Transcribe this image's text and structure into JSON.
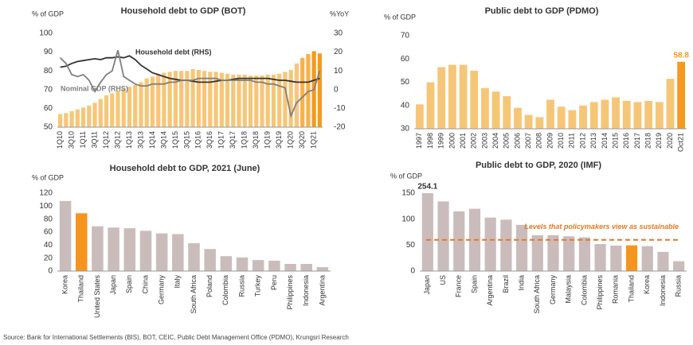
{
  "chart_data": [
    {
      "type": "bar",
      "title": "Household debt to GDP (BOT)",
      "ylabel": "% of GDP",
      "y2label": "%YoY",
      "categories": [
        "1Q10",
        null,
        "3Q10",
        null,
        "1Q11",
        null,
        "3Q11",
        null,
        "1Q12",
        null,
        "3Q12",
        null,
        "1Q13",
        null,
        "3Q13",
        null,
        "1Q14",
        null,
        "3Q14",
        null,
        "1Q15",
        null,
        "3Q15",
        null,
        "1Q16",
        null,
        "3Q16",
        null,
        "1Q17",
        null,
        "3Q17",
        null,
        "1Q18",
        null,
        "3Q18",
        null,
        "1Q19",
        null,
        "3Q19",
        null,
        "1Q20",
        null,
        "3Q20",
        null,
        "1Q21",
        null
      ],
      "values": [
        57,
        57.5,
        58.5,
        59.5,
        60.5,
        61.5,
        63,
        65,
        67,
        68,
        69.5,
        70.5,
        71.5,
        72.5,
        74,
        76,
        77,
        78,
        79,
        79.5,
        80,
        80,
        80,
        81,
        80.5,
        80,
        79.5,
        79.5,
        79,
        78.5,
        78,
        78,
        78,
        77.5,
        77.5,
        77.5,
        78,
        78,
        78.5,
        79.5,
        80.5,
        84,
        87,
        89,
        90.5,
        89.3
      ],
      "colors": [
        "#f6c678",
        "#f6c678",
        "#f6c678",
        "#f6c678",
        "#f6c678",
        "#f6c678",
        "#f6c678",
        "#f6c678",
        "#f6c678",
        "#f6c678",
        "#f6c678",
        "#f6c678",
        "#f6c678",
        "#f6c678",
        "#f6c678",
        "#f6c678",
        "#f6c678",
        "#f6c678",
        "#f6c678",
        "#f6c678",
        "#f6c678",
        "#f6c678",
        "#f6c678",
        "#f6c678",
        "#f6c678",
        "#f6c678",
        "#f6c678",
        "#f6c678",
        "#f6c678",
        "#f6c678",
        "#f6c678",
        "#f6c678",
        "#f6c678",
        "#f6c678",
        "#f6c678",
        "#f6c678",
        "#f6c678",
        "#f6c678",
        "#f6c678",
        "#f6c678",
        "#f6c678",
        "#f6c678",
        "#f6b24a",
        "#f6b24a",
        "#f39a1f",
        "#f39a1f"
      ],
      "ylim": [
        50,
        100
      ],
      "yticks": [
        50,
        60,
        70,
        80,
        90,
        100
      ],
      "y2lim": [
        -20,
        30
      ],
      "y2ticks": [
        -20,
        -10,
        0,
        10,
        20,
        30
      ],
      "lines": [
        {
          "name": "Household debt (RHS)",
          "color": "#333333",
          "axis": "y2",
          "values": [
            12,
            12.5,
            14,
            15,
            15.5,
            16,
            16.5,
            16,
            17,
            17,
            17.5,
            17,
            18,
            16,
            13,
            11,
            9,
            8,
            7,
            6,
            5.5,
            5,
            5,
            4.5,
            4,
            4,
            4,
            4.5,
            5,
            5,
            5.5,
            6,
            6,
            6,
            6,
            6,
            6,
            5.5,
            5,
            5,
            4.5,
            4,
            4,
            4,
            5,
            6
          ]
        },
        {
          "name": "Nominal GDP (RHS)",
          "color": "#7f7f7f",
          "axis": "y2",
          "values": [
            17,
            14,
            8,
            7,
            8,
            5,
            -1,
            4,
            8,
            10,
            21,
            7,
            5,
            3,
            2,
            2,
            3,
            3,
            3,
            4,
            4,
            5,
            5,
            5,
            6,
            6,
            6,
            6,
            5,
            5,
            5,
            5,
            5,
            5,
            4,
            4,
            3,
            3,
            2,
            1,
            -14,
            -7,
            -4,
            -1,
            0,
            10
          ]
        }
      ]
    },
    {
      "type": "bar",
      "title": "Public debt to GDP (PDMO)",
      "ylabel": "% of GDP",
      "categories": [
        "1997",
        "1998",
        "1999",
        "2000",
        "2001",
        "2002",
        "2003",
        "2004",
        "2005",
        "2006",
        "2007",
        "2008",
        "2009",
        "2010",
        "2011",
        "2012",
        "2013",
        "2014",
        "2015",
        "2016",
        "2017",
        "2018",
        "2019",
        "2020",
        "Oct21"
      ],
      "values": [
        40.5,
        50,
        56.5,
        57.5,
        57.5,
        55,
        47.5,
        46,
        44,
        39,
        36,
        35,
        42.5,
        39.5,
        38,
        40,
        41.5,
        42.5,
        43.5,
        42,
        41.5,
        42,
        41.5,
        51.5,
        58.8
      ],
      "value_labels": [
        null,
        null,
        null,
        null,
        null,
        null,
        null,
        null,
        null,
        null,
        null,
        null,
        null,
        null,
        null,
        null,
        null,
        null,
        null,
        null,
        null,
        null,
        null,
        null,
        "58.8"
      ],
      "colors": [
        "#f6c678",
        "#f6c678",
        "#f6c678",
        "#f6c678",
        "#f6c678",
        "#f6c678",
        "#f6c678",
        "#f6c678",
        "#f6c678",
        "#f6c678",
        "#f6c678",
        "#f6c678",
        "#f6c678",
        "#f6c678",
        "#f6c678",
        "#f6c678",
        "#f6c678",
        "#f6c678",
        "#f6c678",
        "#f6c678",
        "#f6c678",
        "#f6c678",
        "#f6c678",
        "#f6c678",
        "#f39a1f"
      ],
      "ylim": [
        30,
        70
      ],
      "yticks": [
        30,
        40,
        50,
        60,
        70
      ]
    },
    {
      "type": "bar",
      "title": "Household debt to GDP, 2021 (June)",
      "ylabel": "% of GDP",
      "categories": [
        "Korea",
        "Thailand",
        "United States",
        "Japan",
        "Spain",
        "China",
        "Germany",
        "Italy",
        "South Africa",
        "Poland",
        "Colombia",
        "Russia",
        "Turkey",
        "Peru",
        "Philippines",
        "Indonesia",
        "Argentina"
      ],
      "values": [
        108,
        89,
        69,
        67,
        66,
        62,
        58,
        57,
        43,
        34,
        23,
        21,
        17,
        16,
        11,
        11,
        6
      ],
      "colors": [
        "#cbbcbc",
        "#f7941d",
        "#cbbcbc",
        "#cbbcbc",
        "#cbbcbc",
        "#cbbcbc",
        "#cbbcbc",
        "#cbbcbc",
        "#cbbcbc",
        "#cbbcbc",
        "#cbbcbc",
        "#cbbcbc",
        "#cbbcbc",
        "#cbbcbc",
        "#cbbcbc",
        "#cbbcbc",
        "#cbbcbc"
      ],
      "ylim": [
        0,
        120
      ],
      "yticks": [
        0,
        20,
        40,
        60,
        80,
        100,
        120
      ]
    },
    {
      "type": "bar",
      "title": "Public debt to GDP, 2020 (IMF)",
      "ylabel": "% of GDP",
      "categories": [
        "Japan",
        "US",
        "France",
        "Spain",
        "Argentina",
        "Brazil",
        "India",
        "South Africa",
        "Germany",
        "Malaysia",
        "Colombia",
        "Philippines",
        "Romania",
        "Thailand",
        "Korea",
        "Indonesia",
        "Russia"
      ],
      "values": [
        254.1,
        134,
        115,
        120,
        103,
        99,
        89,
        69,
        69,
        67,
        65,
        52,
        49,
        49.5,
        48,
        37,
        19
      ],
      "value_labels": [
        "254.1",
        null,
        null,
        null,
        null,
        null,
        null,
        null,
        null,
        null,
        null,
        null,
        null,
        null,
        null,
        null,
        null
      ],
      "colors": [
        "#cbbcbc",
        "#cbbcbc",
        "#cbbcbc",
        "#cbbcbc",
        "#cbbcbc",
        "#cbbcbc",
        "#cbbcbc",
        "#cbbcbc",
        "#cbbcbc",
        "#cbbcbc",
        "#cbbcbc",
        "#cbbcbc",
        "#cbbcbc",
        "#f7941d",
        "#cbbcbc",
        "#cbbcbc",
        "#cbbcbc"
      ],
      "ylim": [
        0,
        150
      ],
      "yticks": [
        0,
        50,
        100,
        150
      ],
      "threshold": {
        "value": 60,
        "label": "Levels that policymakers view as sustainable",
        "color": "#e87722"
      }
    }
  ],
  "source": "Source: Bank for International Settlements (BIS), BOT, CEIC, Public Debt Management Office (PDMO), Krungsri Research"
}
